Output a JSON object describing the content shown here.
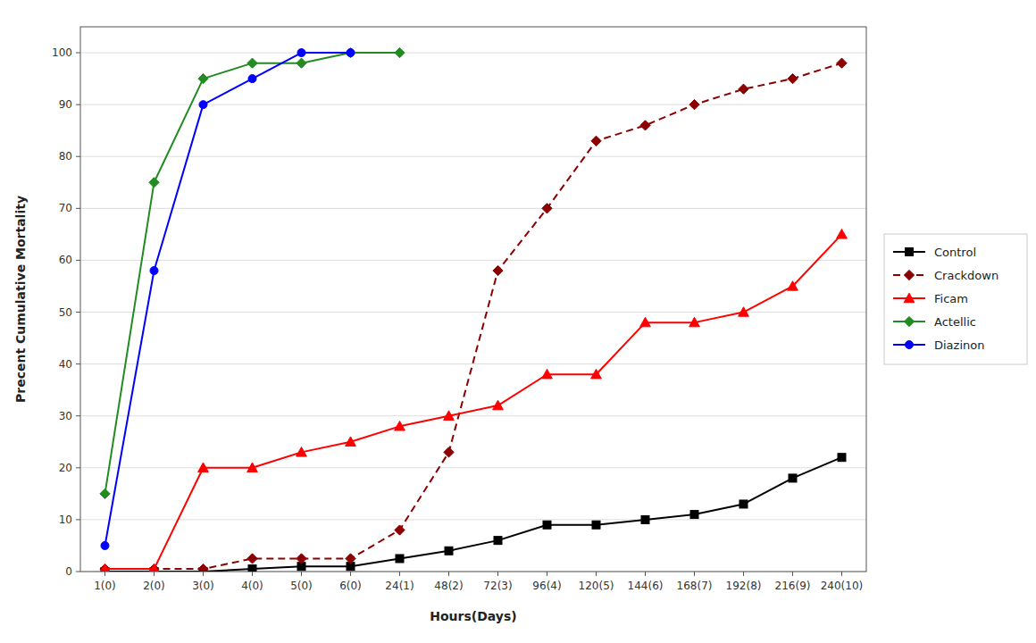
{
  "chart_data": {
    "type": "line",
    "categories": [
      "1(0)",
      "2(0)",
      "3(0)",
      "4(0)",
      "5(0)",
      "6(0)",
      "24(1)",
      "48(2)",
      "72(3)",
      "96(4)",
      "120(5)",
      "144(6)",
      "168(7)",
      "192(8)",
      "216(9)",
      "240(10)"
    ],
    "xlabel": "Hours(Days)",
    "ylabel": "Precent Cumulative Mortality",
    "ylim": [
      0,
      105
    ],
    "yticks": [
      0,
      10,
      20,
      30,
      40,
      50,
      60,
      70,
      80,
      90,
      100
    ],
    "grid": true,
    "legend": "right",
    "series": [
      {
        "name": "Control",
        "color": "#000000",
        "line_style": "solid",
        "marker": "square",
        "values": [
          0,
          0,
          0,
          0.5,
          1,
          1,
          2.5,
          4,
          6,
          9,
          9,
          10,
          11,
          13,
          18,
          22
        ]
      },
      {
        "name": "Crackdown",
        "color": "#8B0000",
        "line_style": "dashed",
        "marker": "diamond",
        "values": [
          0.5,
          0.5,
          0.5,
          2.5,
          2.5,
          2.5,
          8,
          23,
          58,
          70,
          83,
          86,
          90,
          93,
          95,
          98
        ]
      },
      {
        "name": "Ficam",
        "color": "#FF0000",
        "line_style": "solid",
        "marker": "triangle",
        "values": [
          0.5,
          0.5,
          20,
          20,
          23,
          25,
          28,
          30,
          32,
          38,
          38,
          48,
          48,
          50,
          55,
          65
        ]
      },
      {
        "name": "Actellic",
        "color": "#228B22",
        "line_style": "solid",
        "marker": "diamond",
        "values": [
          15,
          75,
          95,
          98,
          98,
          100,
          100,
          null,
          null,
          null,
          null,
          null,
          null,
          null,
          null,
          null
        ]
      },
      {
        "name": "Diazinon",
        "color": "#0000FF",
        "line_style": "solid",
        "marker": "circle",
        "values": [
          5,
          58,
          90,
          95,
          100,
          100,
          null,
          null,
          null,
          null,
          null,
          null,
          null,
          null,
          null,
          null
        ]
      }
    ]
  }
}
